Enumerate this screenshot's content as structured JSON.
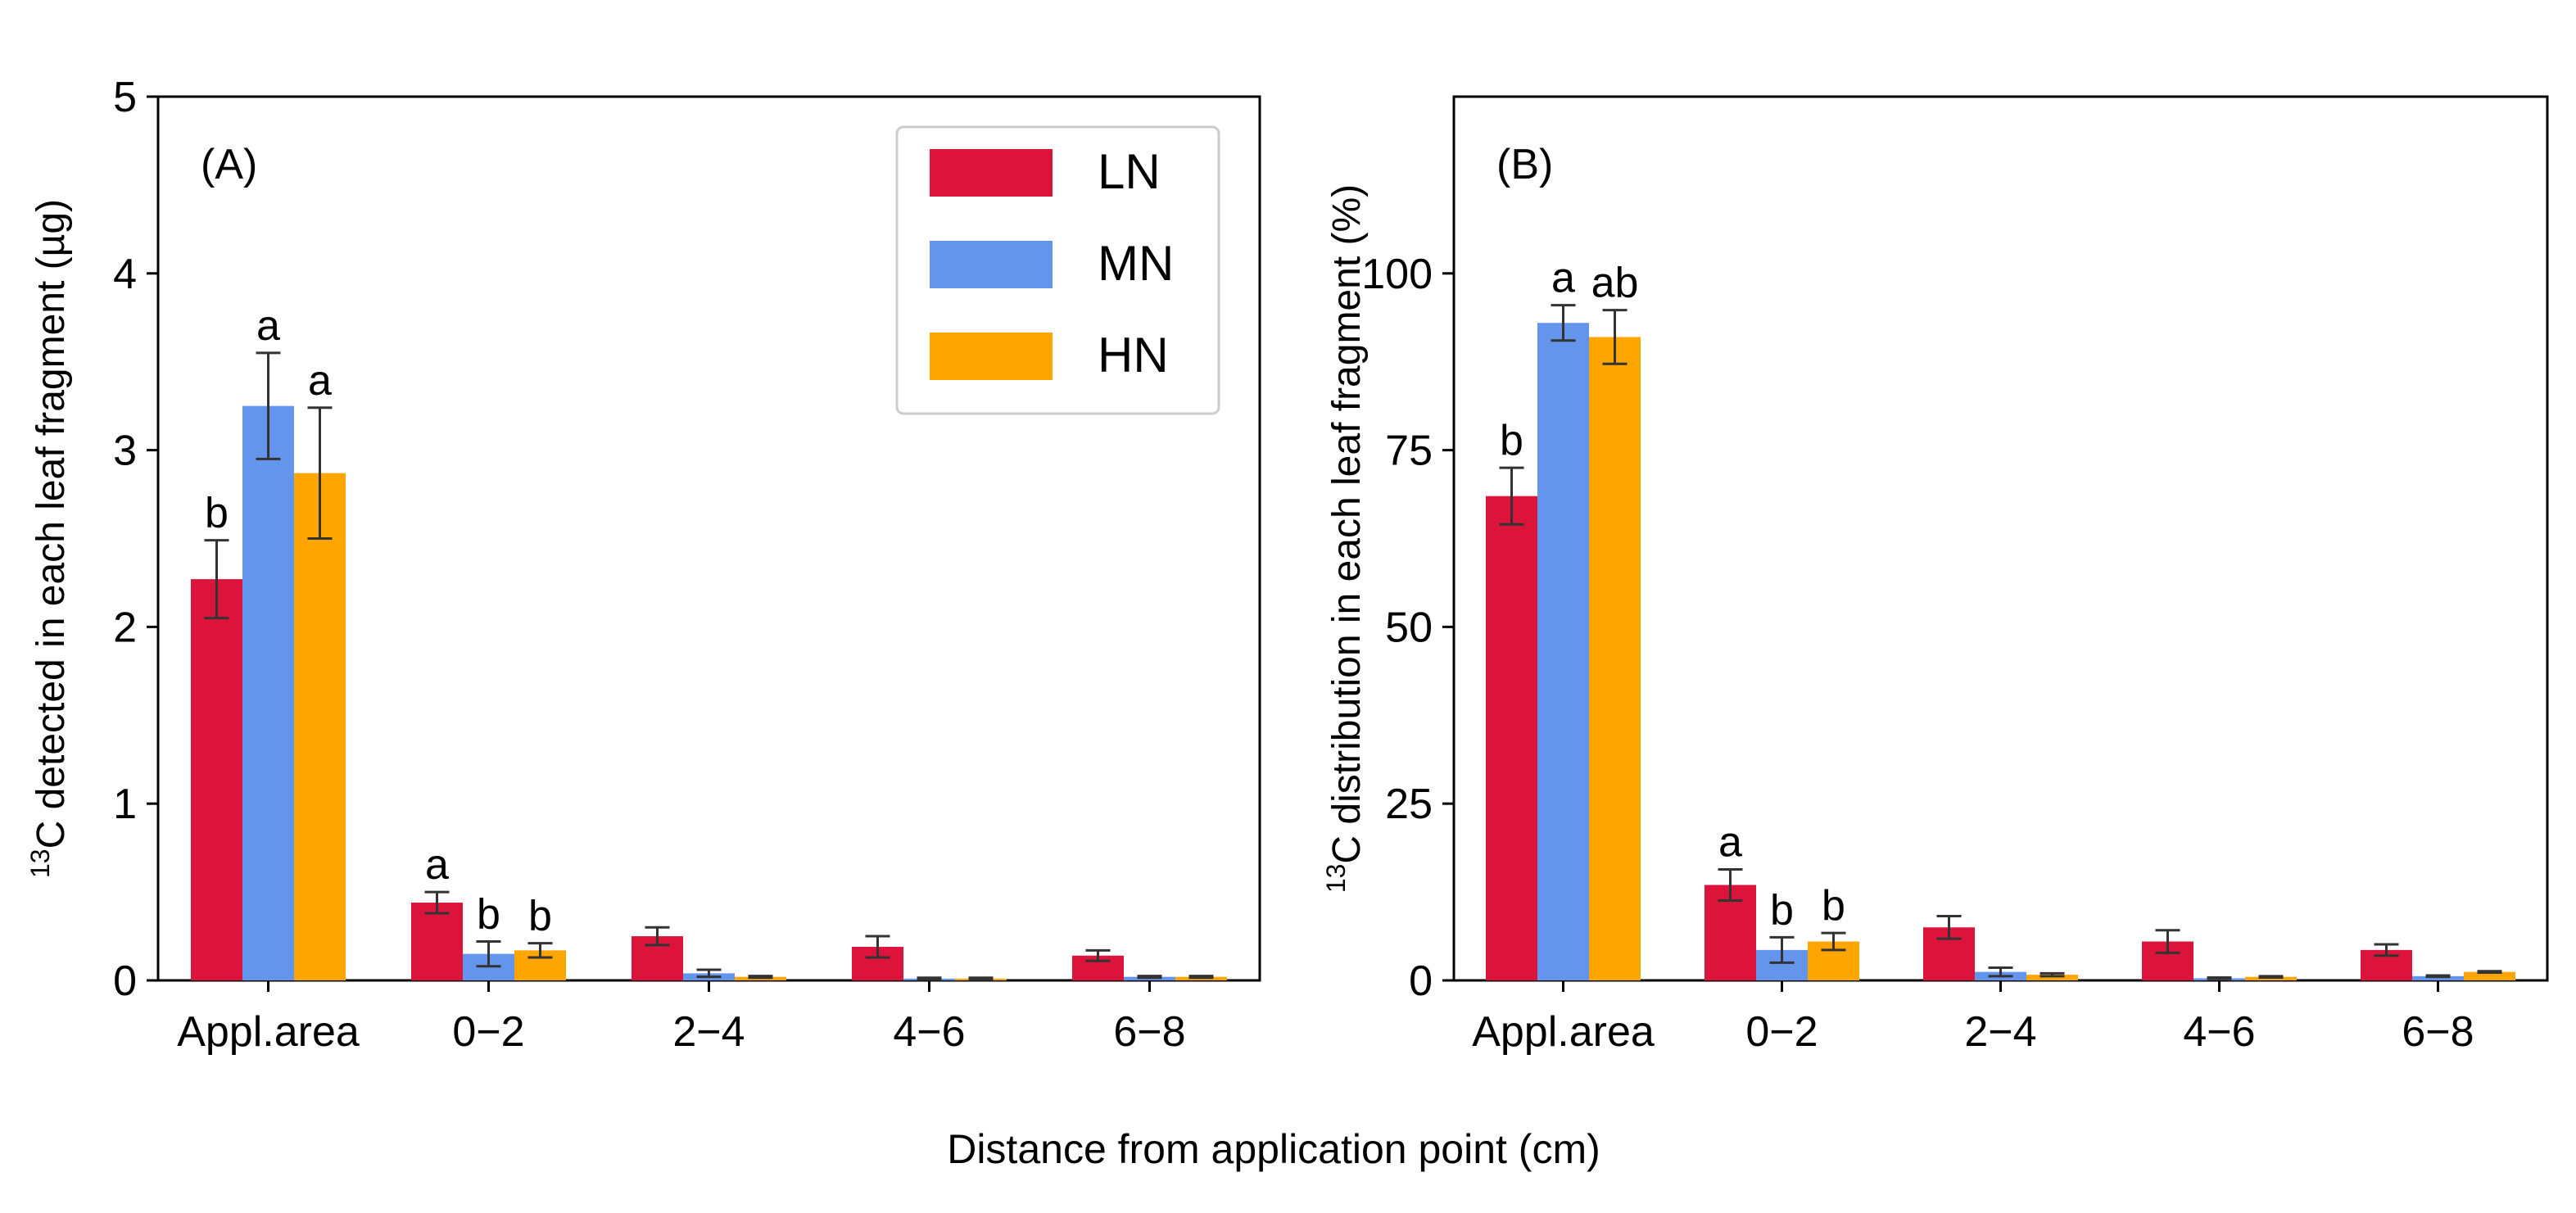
{
  "xlabel": "Distance from application point (cm)",
  "colors": {
    "LN": "#dc143c",
    "MN": "#6495ed",
    "HN": "#ffa500",
    "error": "#333333"
  },
  "legend": {
    "items": [
      "LN",
      "MN",
      "HN"
    ],
    "placement": "top-right of panel A"
  },
  "chart_data": [
    {
      "type": "bar",
      "panel_label": "(A)",
      "ylabel_sup": "13",
      "ylabel": "C detected in each leaf fragment (µg)",
      "categories": [
        "Appl.area",
        "0−2",
        "2−4",
        "4−6",
        "6−8"
      ],
      "ylim": [
        0,
        5
      ],
      "yticks": [
        "0",
        "1",
        "2",
        "3",
        "4",
        "5"
      ],
      "ytick_values": [
        0,
        1,
        2,
        3,
        4,
        5
      ],
      "series": [
        {
          "name": "LN",
          "values": [
            2.27,
            0.44,
            0.25,
            0.19,
            0.14
          ],
          "errors": [
            0.22,
            0.06,
            0.05,
            0.06,
            0.03
          ],
          "letters": [
            "b",
            "a",
            "",
            "",
            ""
          ]
        },
        {
          "name": "MN",
          "values": [
            3.25,
            0.15,
            0.04,
            0.01,
            0.02
          ],
          "errors": [
            0.3,
            0.07,
            0.02,
            0.005,
            0.005
          ],
          "letters": [
            "a",
            "b",
            "",
            "",
            ""
          ]
        },
        {
          "name": "HN",
          "values": [
            2.87,
            0.17,
            0.02,
            0.01,
            0.02
          ],
          "errors": [
            0.37,
            0.04,
            0.005,
            0.005,
            0.005
          ],
          "letters": [
            "a",
            "b",
            "",
            "",
            ""
          ]
        }
      ]
    },
    {
      "type": "bar",
      "panel_label": "(B)",
      "ylabel_sup": "13",
      "ylabel": "C distribution in each leaf fragment (%)",
      "categories": [
        "Appl.area",
        "0−2",
        "2−4",
        "4−6",
        "6−8"
      ],
      "ylim": [
        0,
        125
      ],
      "yticks": [
        "0",
        "25",
        "50",
        "75",
        "100"
      ],
      "ytick_values": [
        0,
        25,
        50,
        75,
        100
      ],
      "series": [
        {
          "name": "LN",
          "values": [
            68.5,
            13.5,
            7.5,
            5.5,
            4.3
          ],
          "errors": [
            4.0,
            2.2,
            1.6,
            1.6,
            0.8
          ],
          "letters": [
            "b",
            "a",
            "",
            "",
            ""
          ]
        },
        {
          "name": "MN",
          "values": [
            93.0,
            4.3,
            1.2,
            0.3,
            0.6
          ],
          "errors": [
            2.5,
            1.8,
            0.6,
            0.1,
            0.1
          ],
          "letters": [
            "a",
            "b",
            "",
            "",
            ""
          ]
        },
        {
          "name": "HN",
          "values": [
            91.0,
            5.5,
            0.8,
            0.5,
            1.2
          ],
          "errors": [
            3.8,
            1.2,
            0.2,
            0.1,
            0.1
          ],
          "letters": [
            "ab",
            "b",
            "",
            "",
            ""
          ]
        }
      ]
    }
  ]
}
